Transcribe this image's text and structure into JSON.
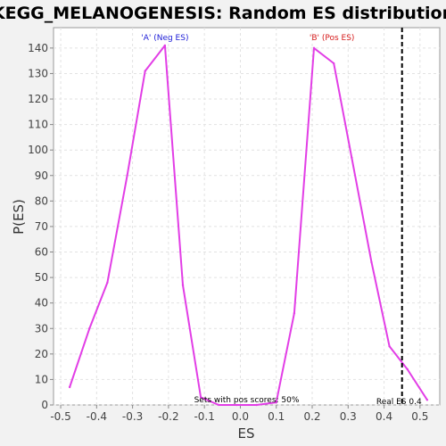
{
  "chart_data": {
    "type": "line",
    "title": "KEGG_MELANOGENESIS: Random ES distribution",
    "xlabel": "ES",
    "ylabel": "P(ES)",
    "xlim": [
      -0.52,
      0.555
    ],
    "ylim": [
      0,
      148
    ],
    "grid": true,
    "x_ticks": [
      -0.5,
      -0.4,
      -0.3,
      -0.2,
      -0.1,
      0.0,
      0.1,
      0.2,
      0.3,
      0.4,
      0.5
    ],
    "x_tick_labels": [
      "-0.5",
      "-0.4",
      "-0.3",
      "-0.2",
      "-0.1",
      "0.0",
      "0.1",
      "0.2",
      "0.3",
      "0.4",
      "0.5"
    ],
    "y_ticks": [
      0,
      10,
      20,
      30,
      40,
      50,
      60,
      70,
      80,
      90,
      100,
      110,
      120,
      130,
      140
    ],
    "y_tick_labels": [
      "0",
      "10",
      "20",
      "30",
      "40",
      "50",
      "60",
      "70",
      "80",
      "90",
      "100",
      "110",
      "120",
      "130",
      "140"
    ],
    "series": [
      {
        "color": "#e23ee6",
        "x": [
          -0.475,
          -0.42,
          -0.37,
          -0.315,
          -0.265,
          -0.21,
          -0.16,
          -0.11,
          -0.06,
          -0.01,
          0.045,
          0.1,
          0.15,
          0.205,
          0.26,
          0.31,
          0.365,
          0.415,
          0.465,
          0.52
        ],
        "values": [
          7,
          30,
          48,
          90,
          131,
          141,
          47,
          3,
          0,
          0,
          0,
          1,
          36,
          140,
          134,
          97,
          56,
          23,
          14,
          2
        ]
      }
    ],
    "annotations": {
      "neg_label": {
        "text": "'A' (Neg ES)",
        "color": "#1b1bd6",
        "x": -0.21
      },
      "pos_label": {
        "text": "'B' (Pos ES)",
        "color": "#d61b1b",
        "x": 0.255
      },
      "pos_fraction": {
        "text": "Sets with pos scores: 50%"
      },
      "real_es": {
        "text": "Real ES 0.4",
        "x": 0.45,
        "color": "#000000"
      }
    }
  }
}
